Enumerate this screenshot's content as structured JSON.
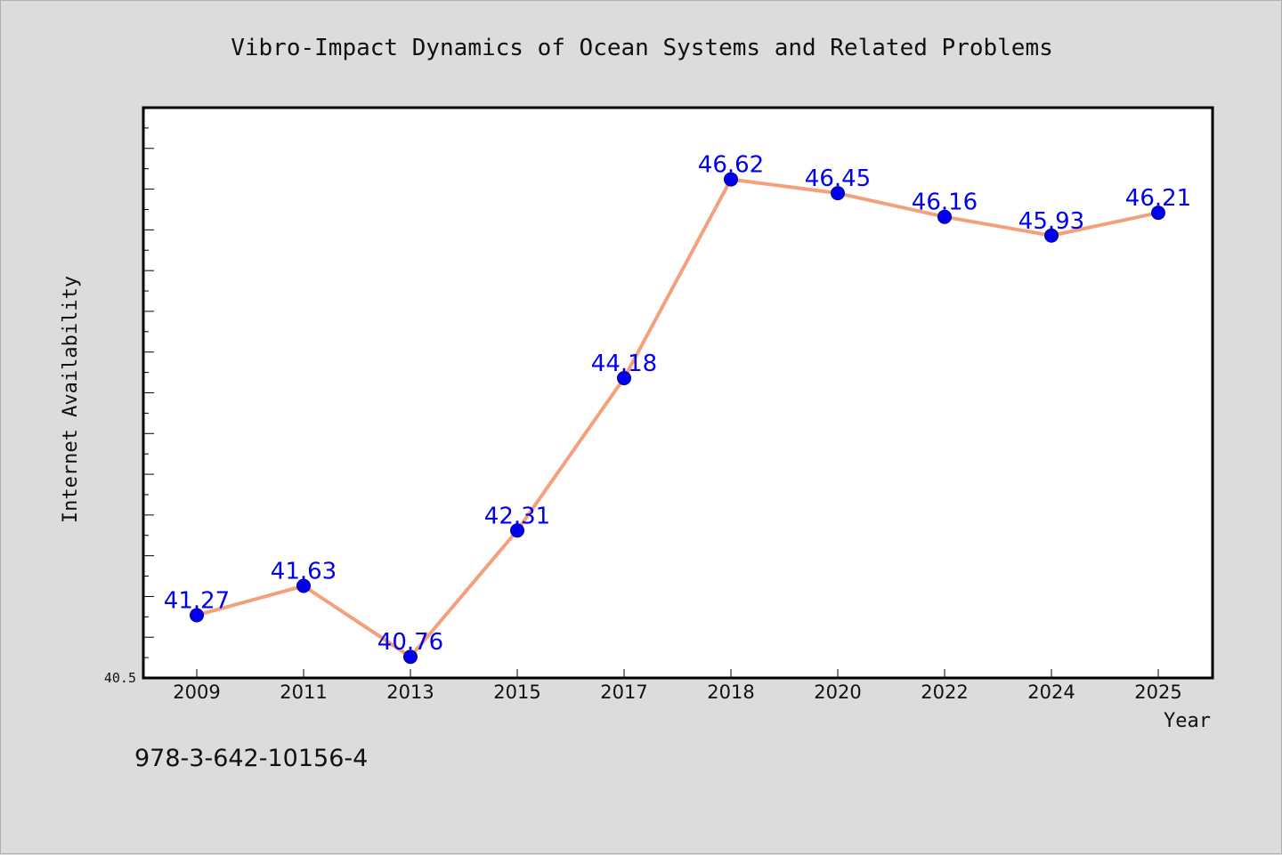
{
  "chart_data": {
    "type": "line",
    "title": "Vibro-Impact Dynamics of Ocean Systems and Related Problems",
    "xlabel": "Year",
    "ylabel": "Internet Availability",
    "categories": [
      "2009",
      "2011",
      "2013",
      "2015",
      "2017",
      "2018",
      "2020",
      "2022",
      "2024",
      "2025"
    ],
    "series": [
      {
        "values": [
          41.27,
          41.63,
          40.76,
          42.31,
          44.18,
          46.62,
          46.45,
          46.16,
          45.93,
          46.21
        ],
        "data_labels": [
          "41.27",
          "41.63",
          "40.76",
          "42.31",
          "44.18",
          "46.62",
          "46.45",
          "46.16",
          "45.93",
          "46.21"
        ]
      }
    ],
    "ylim": [
      40.5,
      47.5
    ],
    "ytick_labels": [
      "40.5"
    ],
    "grid": false,
    "colors": {
      "line": "#f5a07d",
      "marker": "#0000ee",
      "label": "#0000ee"
    }
  },
  "footer": {
    "isbn": "978-3-642-10156-4"
  }
}
